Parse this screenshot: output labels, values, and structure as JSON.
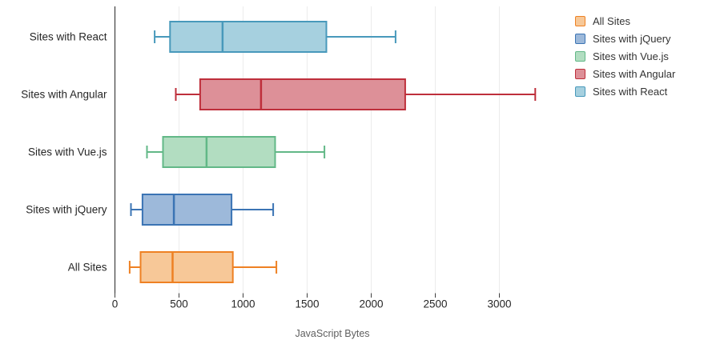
{
  "chart_data": {
    "type": "boxplot",
    "orientation": "horizontal",
    "title": "",
    "xlabel": "JavaScript Bytes",
    "ylabel": "",
    "xlim": [
      0,
      3400
    ],
    "x_ticks": [
      0,
      500,
      1000,
      1500,
      2000,
      2500,
      3000
    ],
    "x_tick_labels": [
      "0",
      "500",
      "1000",
      "1500",
      "2000",
      "2500",
      "3000"
    ],
    "grid": true,
    "legend_position": "top-right",
    "rows_top_to_bottom": [
      "Sites with React",
      "Sites with Angular",
      "Sites with Vue.js",
      "Sites with jQuery",
      "All Sites"
    ],
    "series": [
      {
        "name": "Sites with React",
        "min": 310,
        "q1": 430,
        "median": 840,
        "q3": 1650,
        "max": 2190,
        "stroke": "#4899BB",
        "fill": "#A6D0DF"
      },
      {
        "name": "Sites with Angular",
        "min": 475,
        "q1": 665,
        "median": 1140,
        "q3": 2265,
        "max": 3280,
        "stroke": "#BE2F3B",
        "fill": "#DD9098"
      },
      {
        "name": "Sites with Vue.js",
        "min": 250,
        "q1": 375,
        "median": 715,
        "q3": 1250,
        "max": 1635,
        "stroke": "#62B887",
        "fill": "#B2DDC1"
      },
      {
        "name": "Sites with jQuery",
        "min": 125,
        "q1": 215,
        "median": 460,
        "q3": 910,
        "max": 1235,
        "stroke": "#3B74B4",
        "fill": "#9DB9DA"
      },
      {
        "name": "All Sites",
        "min": 115,
        "q1": 200,
        "median": 450,
        "q3": 920,
        "max": 1260,
        "stroke": "#EE8123",
        "fill": "#F7C898"
      }
    ],
    "legend": [
      {
        "label": "All Sites",
        "stroke": "#EE8123",
        "fill": "#F7C898"
      },
      {
        "label": "Sites with jQuery",
        "stroke": "#3B74B4",
        "fill": "#9DB9DA"
      },
      {
        "label": "Sites with Vue.js",
        "stroke": "#62B887",
        "fill": "#B2DDC1"
      },
      {
        "label": "Sites with Angular",
        "stroke": "#BE2F3B",
        "fill": "#DD9098"
      },
      {
        "label": "Sites with React",
        "stroke": "#4899BB",
        "fill": "#A6D0DF"
      }
    ]
  }
}
